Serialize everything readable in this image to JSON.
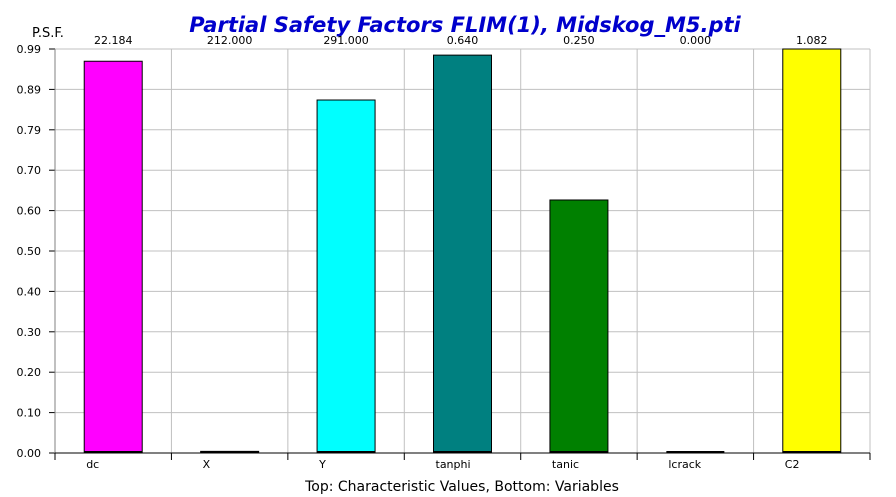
{
  "chart_data": {
    "type": "bar",
    "title": "Partial Safety Factors FLIM(1), Midskog_M5.pti",
    "ylabel": "P.S.F.",
    "xlabel": "Top: Characteristic Values, Bottom: Variables",
    "ylim": [
      0,
      0.99
    ],
    "yticks": [
      "0.00",
      "0.10",
      "0.20",
      "0.30",
      "0.40",
      "0.50",
      "0.60",
      "0.70",
      "0.79",
      "0.89",
      "0.99"
    ],
    "grid": true,
    "categories": [
      "dc",
      "X",
      "Y",
      "tanphi",
      "tanic",
      "lcrack",
      "C2"
    ],
    "characteristic_values": [
      "22.184",
      "212.000",
      "291.000",
      "0.640",
      "0.250",
      "0.000",
      "1.082"
    ],
    "values": [
      0.96,
      0.004,
      0.865,
      0.975,
      0.62,
      0.0,
      0.99
    ],
    "colors": [
      "#ff00ff",
      "#000000",
      "#00ffff",
      "#008080",
      "#008000",
      "#000000",
      "#ffff00"
    ]
  }
}
